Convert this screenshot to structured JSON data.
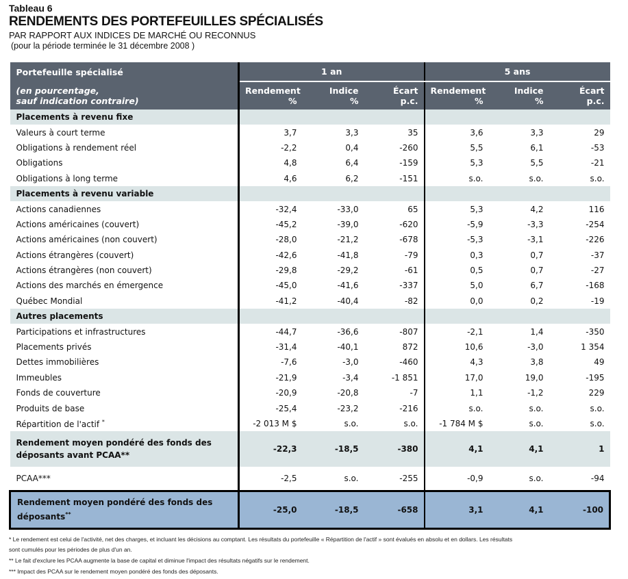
{
  "header": {
    "table_no": "Tableau 6",
    "title": "RENDEMENTS DES PORTEFEUILLES SPÉCIALISÉS",
    "subtitle": "PAR RAPPORT AUX INDICES DE MARCHÉ OU RECONNUS",
    "period": "(pour la période terminée le 31 décembre 2008 )"
  },
  "columns": {
    "portfolio": "Portefeuille spécialisé",
    "note1": "(en pourcentage,",
    "note2": "sauf indication contraire)",
    "group1": "1 an",
    "group2": "5 ans",
    "sub": [
      [
        "Rendement",
        "%"
      ],
      [
        "Indice",
        "%"
      ],
      [
        "Écart",
        "p.c."
      ],
      [
        "Rendement",
        "%"
      ],
      [
        "Indice",
        "%"
      ],
      [
        "Écart",
        "p.c."
      ]
    ]
  },
  "sections": [
    {
      "title": "Placements à revenu fixe",
      "rows": [
        {
          "label": "Valeurs à court terme",
          "values": [
            "3,7",
            "3,3",
            "35",
            "3,6",
            "3,3",
            "29"
          ]
        },
        {
          "label": "Obligations à rendement réel",
          "values": [
            "-2,2",
            "0,4",
            "-260",
            "5,5",
            "6,1",
            "-53"
          ]
        },
        {
          "label": "Obligations",
          "values": [
            "4,8",
            "6,4",
            "-159",
            "5,3",
            "5,5",
            "-21"
          ]
        },
        {
          "label": "Obligations à long terme",
          "values": [
            "4,6",
            "6,2",
            "-151",
            "s.o.",
            "s.o.",
            "s.o."
          ]
        }
      ]
    },
    {
      "title": "Placements à revenu variable",
      "rows": [
        {
          "label": "Actions canadiennes",
          "values": [
            "-32,4",
            "-33,0",
            "65",
            "5,3",
            "4,2",
            "116"
          ]
        },
        {
          "label": "Actions américaines (couvert)",
          "values": [
            "-45,2",
            "-39,0",
            "-620",
            "-5,9",
            "-3,3",
            "-254"
          ]
        },
        {
          "label": "Actions américaines (non couvert)",
          "values": [
            "-28,0",
            "-21,2",
            "-678",
            "-5,3",
            "-3,1",
            "-226"
          ]
        },
        {
          "label": "Actions étrangères (couvert)",
          "values": [
            "-42,6",
            "-41,8",
            "-79",
            "0,3",
            "0,7",
            "-37"
          ]
        },
        {
          "label": "Actions étrangères (non couvert)",
          "values": [
            "-29,8",
            "-29,2",
            "-61",
            "0,5",
            "0,7",
            "-27"
          ]
        },
        {
          "label": "Actions des marchés en émergence",
          "values": [
            "-45,0",
            "-41,6",
            "-337",
            "5,0",
            "6,7",
            "-168"
          ]
        },
        {
          "label": "Québec Mondial",
          "values": [
            "-41,2",
            "-40,4",
            "-82",
            "0,0",
            "0,2",
            "-19"
          ]
        }
      ]
    },
    {
      "title": "Autres placements",
      "rows": [
        {
          "label": "Participations et infrastructures",
          "values": [
            "-44,7",
            "-36,6",
            "-807",
            "-2,1",
            "1,4",
            "-350"
          ]
        },
        {
          "label": "Placements privés",
          "values": [
            "-31,4",
            "-40,1",
            "872",
            "10,6",
            "-3,0",
            "1 354"
          ]
        },
        {
          "label": "Dettes immobilières",
          "values": [
            "-7,6",
            "-3,0",
            "-460",
            "4,3",
            "3,8",
            "49"
          ]
        },
        {
          "label": "Immeubles",
          "values": [
            "-21,9",
            "-3,4",
            "-1 851",
            "17,0",
            "19,0",
            "-195"
          ]
        },
        {
          "label": "Fonds de couverture",
          "values": [
            "-20,9",
            "-20,8",
            "-7",
            "1,1",
            "-1,2",
            "229"
          ]
        },
        {
          "label": "Produits de base",
          "values": [
            "-25,4",
            "-23,2",
            "-216",
            "s.o.",
            "s.o.",
            "s.o."
          ]
        },
        {
          "label": "Répartition de l'actif",
          "sup": "*",
          "values": [
            "-2 013 M $",
            "s.o.",
            "s.o.",
            "-1 784 M $",
            "s.o.",
            "s.o."
          ]
        }
      ]
    }
  ],
  "avg_before": {
    "label1": "Rendement moyen pondéré des fonds des",
    "label2": "déposants avant PCAA**",
    "values": [
      "-22,3",
      "-18,5",
      "-380",
      "4,1",
      "4,1",
      "1"
    ]
  },
  "pcaa": {
    "label": "PCAA***",
    "values": [
      "-2,5",
      "s.o.",
      "-255",
      "-0,9",
      "s.o.",
      "-94"
    ]
  },
  "avg_total": {
    "label1": "Rendement moyen pondéré des fonds des",
    "label2": "déposants",
    "sup": "**",
    "values": [
      "-25,0",
      "-18,5",
      "-658",
      "3,1",
      "4,1",
      "-100"
    ]
  },
  "footnotes": [
    "* Le rendement est celui de l'activité, net des charges, et incluant les décisions au comptant. Les résultats du portefeuille « Répartition de l'actif » sont évalués en absolu et en dollars. Les résultats",
    "sont cumulés pour les périodes de plus d'un an.",
    "** Le fait d'exclure les PCAA augmente la base de capital et diminue l'impact des résultats négatifs sur le rendement.",
    "*** Impact des PCAA sur le rendement moyen pondéré des fonds des déposants."
  ]
}
